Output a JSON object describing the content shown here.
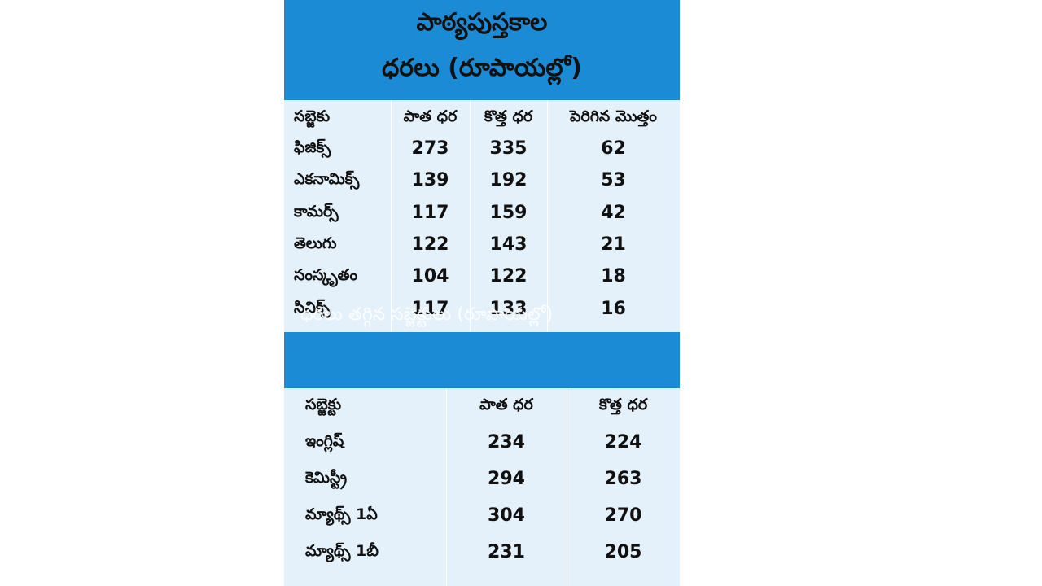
{
  "header": {
    "title_line1": "పాఠ్యపుస్తకాల",
    "title_line2": "ధరలు (రూపాయల్లో)"
  },
  "increased_table": {
    "columns": [
      "సబ్జెకు",
      "పాత ధర",
      "కొత్త ధర",
      "పెరిగిన మొత్తం"
    ],
    "rows": [
      [
        "ఫిజిక్స్",
        273,
        335,
        62
      ],
      [
        "ఎకనామిక్స్",
        139,
        192,
        53
      ],
      [
        "కామర్స్",
        117,
        159,
        42
      ],
      [
        "తెలుగు",
        122,
        143,
        21
      ],
      [
        "సంస్కృతం",
        104,
        122,
        18
      ],
      [
        "సివిక్స్",
        117,
        133,
        16
      ]
    ]
  },
  "decreased_title": "ధరలు తగ్గిన సబ్జెక్టులు (రూపాయల్లో)",
  "decreased_table": {
    "columns": [
      "సబ్జెక్టు",
      "పాత ధర",
      "కొత్త ధర"
    ],
    "rows": [
      [
        "ఇంగ్లిష్",
        234,
        224
      ],
      [
        "కెమిస్ట్రీ",
        294,
        263
      ],
      [
        "మ్యాథ్స్ 1ఏ",
        304,
        270
      ],
      [
        "మ్యాథ్స్ 1బీ",
        231,
        205
      ]
    ]
  }
}
